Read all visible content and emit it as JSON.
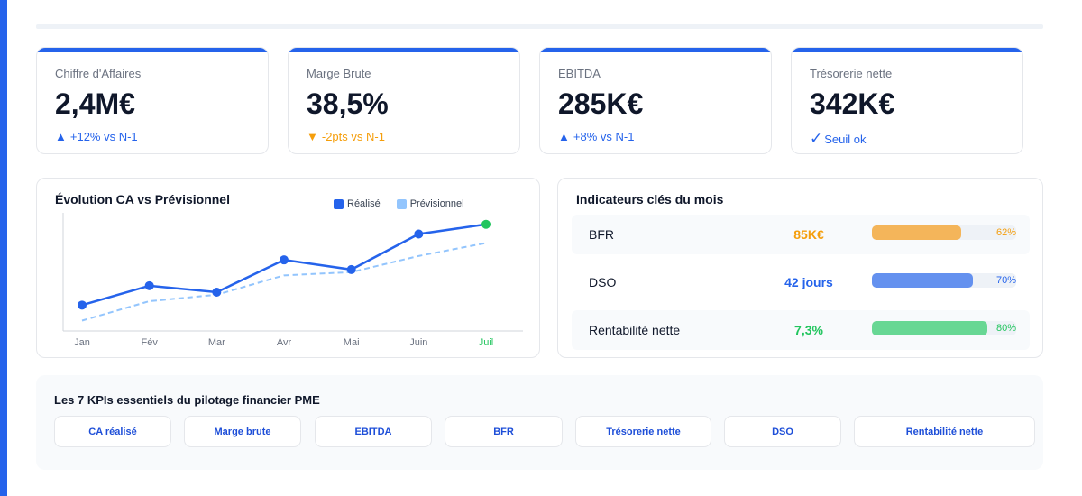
{
  "colors": {
    "accent": "#2563eb",
    "orange": "#f59e0b",
    "green": "#22c55e",
    "forecast": "#93c5fd"
  },
  "kpis": [
    {
      "label": "Chiffre d'Affaires",
      "value": "2,4M€",
      "delta_symbol": "▲",
      "delta_text": "+12% vs N-1",
      "tone": "up"
    },
    {
      "label": "Marge Brute",
      "value": "38,5%",
      "delta_symbol": "▼",
      "delta_text": "-2pts vs N-1",
      "tone": "down"
    },
    {
      "label": "EBITDA",
      "value": "285K€",
      "delta_symbol": "▲",
      "delta_text": "+8% vs N-1",
      "tone": "up"
    },
    {
      "label": "Trésorerie nette",
      "value": "342K€",
      "delta_symbol": "✓",
      "delta_text": "Seuil ok",
      "tone": "ok"
    }
  ],
  "chart_data": {
    "type": "line",
    "title": "Évolution CA vs Prévisionnel",
    "categories": [
      "Jan",
      "Fév",
      "Mar",
      "Avr",
      "Mai",
      "Juin",
      "Juil"
    ],
    "series": [
      {
        "name": "Réalisé",
        "values": [
          2.0,
          2.3,
          2.2,
          2.7,
          2.55,
          3.1,
          3.25
        ],
        "color": "#2563eb"
      },
      {
        "name": "Prévisionnel",
        "values": [
          1.9,
          2.2,
          2.3,
          2.6,
          2.65,
          2.9,
          3.1
        ],
        "color": "#93c5fd"
      }
    ],
    "highlight_category": "Juil",
    "highlight_color": "#22c55e",
    "ylim": [
      1.6,
      3.4
    ],
    "grid": false,
    "legend": "top-right"
  },
  "indicators": {
    "title": "Indicateurs clés du mois",
    "rows": [
      {
        "label": "BFR",
        "value": "85K€",
        "percent": 62,
        "percent_label": "62%",
        "color": "#f59e0b",
        "bar_color": "#f4b55a",
        "shaded": true
      },
      {
        "label": "DSO",
        "value": "42 jours",
        "percent": 70,
        "percent_label": "70%",
        "color": "#2563eb",
        "bar_color": "#6491ef",
        "shaded": false
      },
      {
        "label": "Rentabilité nette",
        "value": "7,3%",
        "percent": 80,
        "percent_label": "80%",
        "color": "#22c55e",
        "bar_color": "#68d794",
        "shaded": true
      }
    ]
  },
  "essentials": {
    "title": "Les 7 KPIs essentiels du pilotage financier PME",
    "items": [
      "CA réalisé",
      "Marge brute",
      "EBITDA",
      "BFR",
      "Trésorerie nette",
      "DSO",
      "Rentabilité nette"
    ]
  }
}
